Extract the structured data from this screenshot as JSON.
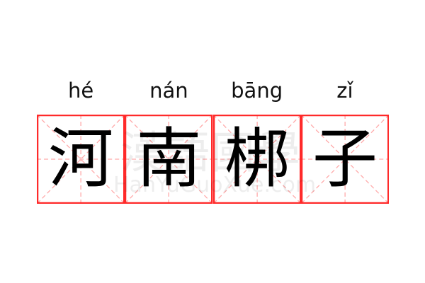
{
  "words": [
    {
      "pinyin": "hé",
      "hanzi": "河"
    },
    {
      "pinyin": "nán",
      "hanzi": "南"
    },
    {
      "pinyin": "bāng",
      "hanzi": "梆"
    },
    {
      "pinyin": "zǐ",
      "hanzi": "子"
    }
  ],
  "watermark": {
    "cn": "漢語國學",
    "en": "HanYuGuoXue.com"
  },
  "colors": {
    "border": "#ff2a2a",
    "guide": "#ffaaaa",
    "text": "#000000"
  }
}
